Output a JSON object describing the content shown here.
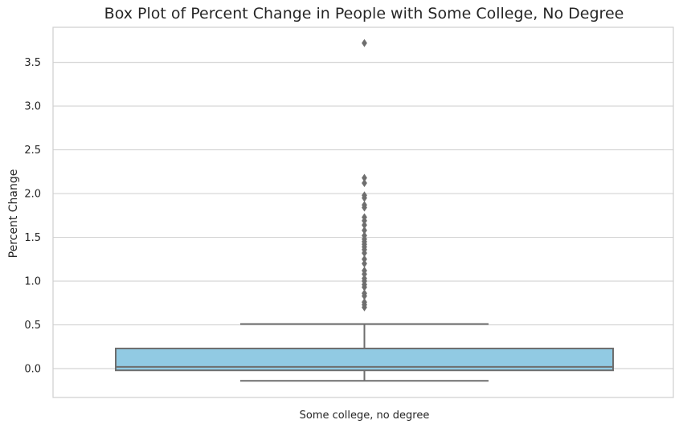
{
  "chart_data": {
    "type": "box",
    "title": "Box Plot of Percent Change in People with Some College, No Degree",
    "xlabel": "",
    "ylabel": "Percent Change",
    "categories": [
      "Some college, no degree"
    ],
    "ylim": [
      -0.33,
      3.9
    ],
    "yticks": [
      0.0,
      0.5,
      1.0,
      1.5,
      2.0,
      2.5,
      3.0,
      3.5
    ],
    "grid": "horizontal",
    "box": {
      "whisker_low": -0.14,
      "q1": -0.02,
      "median": 0.02,
      "q3": 0.23,
      "whisker_high": 0.51
    },
    "outliers": [
      0.7,
      0.73,
      0.76,
      0.83,
      0.86,
      0.93,
      0.96,
      1.0,
      1.03,
      1.08,
      1.12,
      1.2,
      1.25,
      1.32,
      1.36,
      1.39,
      1.42,
      1.45,
      1.48,
      1.52,
      1.58,
      1.64,
      1.69,
      1.73,
      1.84,
      1.87,
      1.95,
      1.98,
      2.12,
      2.18,
      3.72
    ],
    "colors": {
      "box_fill": "#91cae3",
      "lines": "#6e6e6e",
      "grid": "#d3d3d3",
      "frame": "#cfcfcf"
    }
  }
}
